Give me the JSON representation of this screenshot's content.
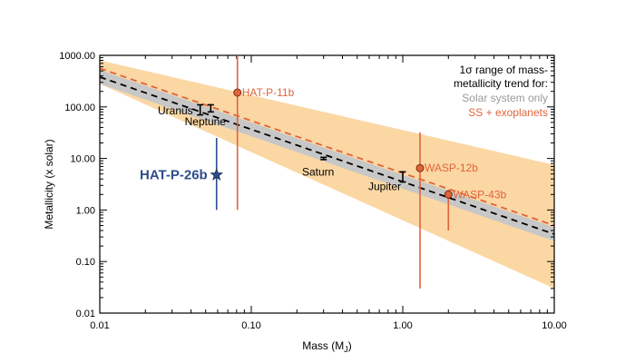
{
  "chart_data": {
    "type": "scatter",
    "xscale": "log",
    "yscale": "log",
    "xlim": [
      0.01,
      10.0
    ],
    "ylim": [
      0.01,
      1000.0
    ],
    "xlabel": "Mass (M",
    "xlabel_sub": "J",
    "xlabel_close": ")",
    "ylabel": "Metallicity (x solar)",
    "x_ticks": [
      {
        "value": 0.01,
        "label": "0.01"
      },
      {
        "value": 0.1,
        "label": "0.10"
      },
      {
        "value": 1,
        "label": "1.00"
      },
      {
        "value": 10,
        "label": "10.00"
      }
    ],
    "y_ticks": [
      {
        "value": 0.01,
        "label": "0.01"
      },
      {
        "value": 0.1,
        "label": "0.10"
      },
      {
        "value": 1,
        "label": "1.00"
      },
      {
        "value": 10,
        "label": "10.00"
      },
      {
        "value": 100,
        "label": "100.00"
      },
      {
        "value": 1000,
        "label": "1000.00"
      }
    ],
    "legend": {
      "placement": "top-right",
      "lines": [
        "1σ range of mass-",
        "metallicity trend for:"
      ],
      "solar_label": "Solar system only",
      "exo_label": "SS + exoplanets",
      "solar_color": "#9a9a9a",
      "exo_color": "#e0643a"
    },
    "trends": {
      "solar_only": {
        "line": [
          [
            0.01,
            380
          ],
          [
            10,
            0.34
          ]
        ],
        "band_upper": [
          [
            0.01,
            520
          ],
          [
            10,
            0.46
          ]
        ],
        "band_lower": [
          [
            0.01,
            280
          ],
          [
            10,
            0.25
          ]
        ],
        "line_color": "#000000",
        "band_color": "#c7c7c7"
      },
      "ss_plus_exoplanets": {
        "line": [
          [
            0.01,
            560
          ],
          [
            10,
            0.5
          ]
        ],
        "band_upper": [
          [
            0.01,
            800
          ],
          [
            10,
            7.5
          ]
        ],
        "band_lower": [
          [
            0.01,
            280
          ],
          [
            10,
            0.03
          ]
        ],
        "line_color": "#e0643a",
        "band_color": "#fbd7a4"
      }
    },
    "solar_system_points": [
      {
        "name": "Uranus",
        "x": 0.046,
        "y": 85,
        "y_low": 70,
        "y_high": 110,
        "label_anchor": "left"
      },
      {
        "name": "Neptune",
        "x": 0.054,
        "y": 95,
        "y_low": 80,
        "y_high": 110,
        "label_anchor": "below"
      },
      {
        "name": "Saturn",
        "x": 0.3,
        "y": 10,
        "y_low": 9.5,
        "y_high": 10.5,
        "label_anchor": "below"
      },
      {
        "name": "Jupiter",
        "x": 1.0,
        "y": 4.5,
        "y_low": 3.5,
        "y_high": 5.5,
        "label_anchor": "below-left"
      }
    ],
    "exoplanet_points": [
      {
        "name": "HAT-P-11b",
        "x": 0.081,
        "y": 190,
        "y_low": 1.0,
        "y_high": 1200
      },
      {
        "name": "WASP-12b",
        "x": 1.3,
        "y": 6.5,
        "y_low": 0.03,
        "y_high": 32
      },
      {
        "name": "WASP-43b",
        "x": 2.0,
        "y": 2.0,
        "y_low": 0.4,
        "y_high": 2.5
      }
    ],
    "highlight_point": {
      "name": "HAT-P-26b",
      "x": 0.059,
      "y": 4.8,
      "y_low": 1.0,
      "y_high": 25,
      "color": "#2d4d8c",
      "marker": "star"
    }
  }
}
